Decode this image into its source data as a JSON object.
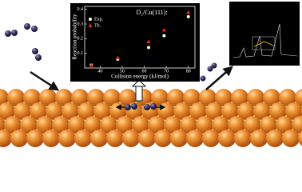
{
  "chart_data": {
    "type": "scatter",
    "title": "D₂/Cu(111):",
    "xlabel": "Collision energy (kJ/mol)",
    "ylabel": "Reaction probability",
    "xlim": [
      33,
      83
    ],
    "xticks": [
      40,
      50,
      60,
      70,
      80
    ],
    "ylim": [
      0,
      0.42
    ],
    "yticks": [
      0.1,
      0.2,
      0.3,
      0.4
    ],
    "legend": "top-left",
    "series": [
      {
        "name": "Exp.",
        "color": "#ffffcc",
        "marker": "circle",
        "x": [
          36,
          48,
          62,
          69,
          80
        ],
        "values": [
          0.02,
          0.06,
          0.14,
          0.22,
          0.35
        ]
      },
      {
        "name": "Th.",
        "color": "#e8321e",
        "marker": "triangle",
        "x": [
          36,
          48,
          62,
          69,
          80
        ],
        "values": [
          0.02,
          0.07,
          0.18,
          0.26,
          0.38
        ]
      }
    ]
  }
}
